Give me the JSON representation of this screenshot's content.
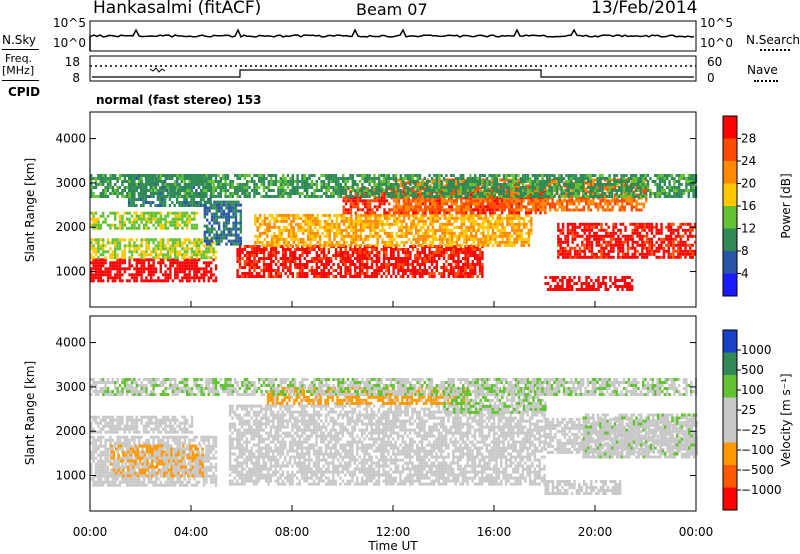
{
  "header": {
    "station": "Hankasalmi (fitACF)",
    "beam": "Beam 07",
    "date": "13/Feb/2014"
  },
  "sky_panel": {
    "left_label": "N.Sky",
    "right_label": "N.Search",
    "ticks_left": [
      "10^5",
      "10^0"
    ],
    "ticks_right": [
      "10^5",
      "10^0"
    ]
  },
  "freq_panel": {
    "left_label_top": "Freq.",
    "left_label_unit": "[MHz]",
    "right_label": "Nave",
    "ticks_left": [
      "18",
      "8"
    ],
    "ticks_right": [
      "60",
      "0"
    ]
  },
  "cpid": {
    "label": "CPID",
    "text": "normal (fast stereo) 153"
  },
  "chart_data": [
    {
      "type": "heatmap",
      "name": "power",
      "ylabel": "Slant Range [km]",
      "ylim": [
        200,
        4600
      ],
      "y_ticks": [
        "4000",
        "3000",
        "2000",
        "1000"
      ],
      "x_hours": [
        0,
        24
      ],
      "colorbar_label": "Power [dB]",
      "colorbar_ticks": [
        "28",
        "24",
        "20",
        "16",
        "12",
        "8",
        "4"
      ],
      "colorbar_colors": [
        "#ff0000",
        "#ff4a00",
        "#ff8a00",
        "#ffc800",
        "#62c230",
        "#2f8a55",
        "#2a55a8",
        "#1a1aff"
      ],
      "colorbar_range": [
        0,
        32
      ],
      "bands": [
        {
          "t": [
            0,
            5.0
          ],
          "r": [
            800,
            1300
          ],
          "v": 30
        },
        {
          "t": [
            0,
            5.0
          ],
          "r": [
            1300,
            1750
          ],
          "v": 16
        },
        {
          "t": [
            0,
            4.2
          ],
          "r": [
            1950,
            2350
          ],
          "v": 15
        },
        {
          "t": [
            1.5,
            4.8
          ],
          "r": [
            2500,
            3200
          ],
          "v": 9
        },
        {
          "t": [
            5.8,
            15.5
          ],
          "r": [
            900,
            1600
          ],
          "v": 29
        },
        {
          "t": [
            6.5,
            17.5
          ],
          "r": [
            1600,
            2300
          ],
          "v": 20
        },
        {
          "t": [
            10,
            18
          ],
          "r": [
            2300,
            2900
          ],
          "v": 28
        },
        {
          "t": [
            12,
            22
          ],
          "r": [
            2400,
            3100
          ],
          "v": 24
        },
        {
          "t": [
            18.5,
            24
          ],
          "r": [
            1300,
            2100
          ],
          "v": 29
        },
        {
          "t": [
            18,
            21.5
          ],
          "r": [
            600,
            900
          ],
          "v": 30
        },
        {
          "t": [
            4.5,
            6
          ],
          "r": [
            1600,
            2600
          ],
          "v": 8
        },
        {
          "t": [
            0,
            24
          ],
          "r": [
            2700,
            3200
          ],
          "v": 11
        }
      ]
    },
    {
      "type": "heatmap",
      "name": "velocity",
      "ylabel": "Slant Range [km]",
      "ylim": [
        200,
        4600
      ],
      "y_ticks": [
        "4000",
        "3000",
        "2000",
        "1000"
      ],
      "x_hours": [
        0,
        24
      ],
      "x_ticks": [
        "00:00",
        "04:00",
        "08:00",
        "12:00",
        "16:00",
        "20:00",
        "00:00"
      ],
      "xlabel": "Time UT",
      "colorbar_label": "Velocity [m s⁻¹]",
      "colorbar_ticks": [
        "1000",
        "500",
        "100",
        "25",
        "−25",
        "−100",
        "−500",
        "−1000"
      ],
      "colorbar_colors": [
        "#1a3fc8",
        "#2f8a55",
        "#62c230",
        "#c8c8c8",
        "#c8c8c8",
        "#ff9a00",
        "#ff5a00",
        "#ff0000"
      ],
      "colorbar_range": [
        -1200,
        1200
      ],
      "bands": [
        {
          "t": [
            0,
            5.0
          ],
          "r": [
            800,
            1900
          ],
          "v": 0
        },
        {
          "t": [
            0,
            4.0
          ],
          "r": [
            1950,
            2350
          ],
          "v": 0
        },
        {
          "t": [
            0.8,
            4.5
          ],
          "r": [
            1000,
            1700
          ],
          "v": -300
        },
        {
          "t": [
            5.5,
            18
          ],
          "r": [
            800,
            2600
          ],
          "v": 0
        },
        {
          "t": [
            7,
            15
          ],
          "r": [
            2600,
            3000
          ],
          "v": -400
        },
        {
          "t": [
            14,
            18
          ],
          "r": [
            2400,
            3000
          ],
          "v": 300
        },
        {
          "t": [
            18,
            24
          ],
          "r": [
            1500,
            2300
          ],
          "v": 0
        },
        {
          "t": [
            19.5,
            24
          ],
          "r": [
            1400,
            2400
          ],
          "v": 200
        },
        {
          "t": [
            0,
            24
          ],
          "r": [
            2800,
            3200
          ],
          "v": 250
        },
        {
          "t": [
            18,
            21
          ],
          "r": [
            600,
            900
          ],
          "v": 0
        }
      ]
    }
  ]
}
